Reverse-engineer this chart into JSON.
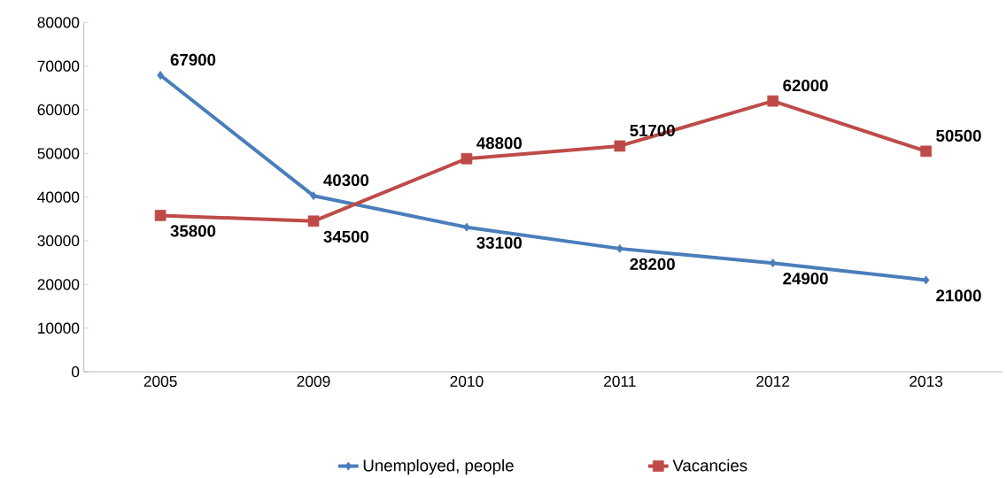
{
  "chart_data": {
    "type": "line",
    "categories": [
      "2005",
      "2009",
      "2010",
      "2011",
      "2012",
      "2013"
    ],
    "series": [
      {
        "name": "Unemployed, people",
        "color": "#4a7ebb",
        "marker": "diamond",
        "values": [
          67900,
          40300,
          33100,
          28200,
          24900,
          21000
        ]
      },
      {
        "name": "Vacancies",
        "color": "#be4b48",
        "marker": "square",
        "values": [
          35800,
          34500,
          48800,
          51700,
          62000,
          50500
        ]
      }
    ],
    "ylim": [
      0,
      80000
    ],
    "yticks": [
      0,
      10000,
      20000,
      30000,
      40000,
      50000,
      60000,
      70000,
      80000
    ],
    "grid": false,
    "legend": "bottom",
    "data_labels": true,
    "line_style": "solid"
  }
}
